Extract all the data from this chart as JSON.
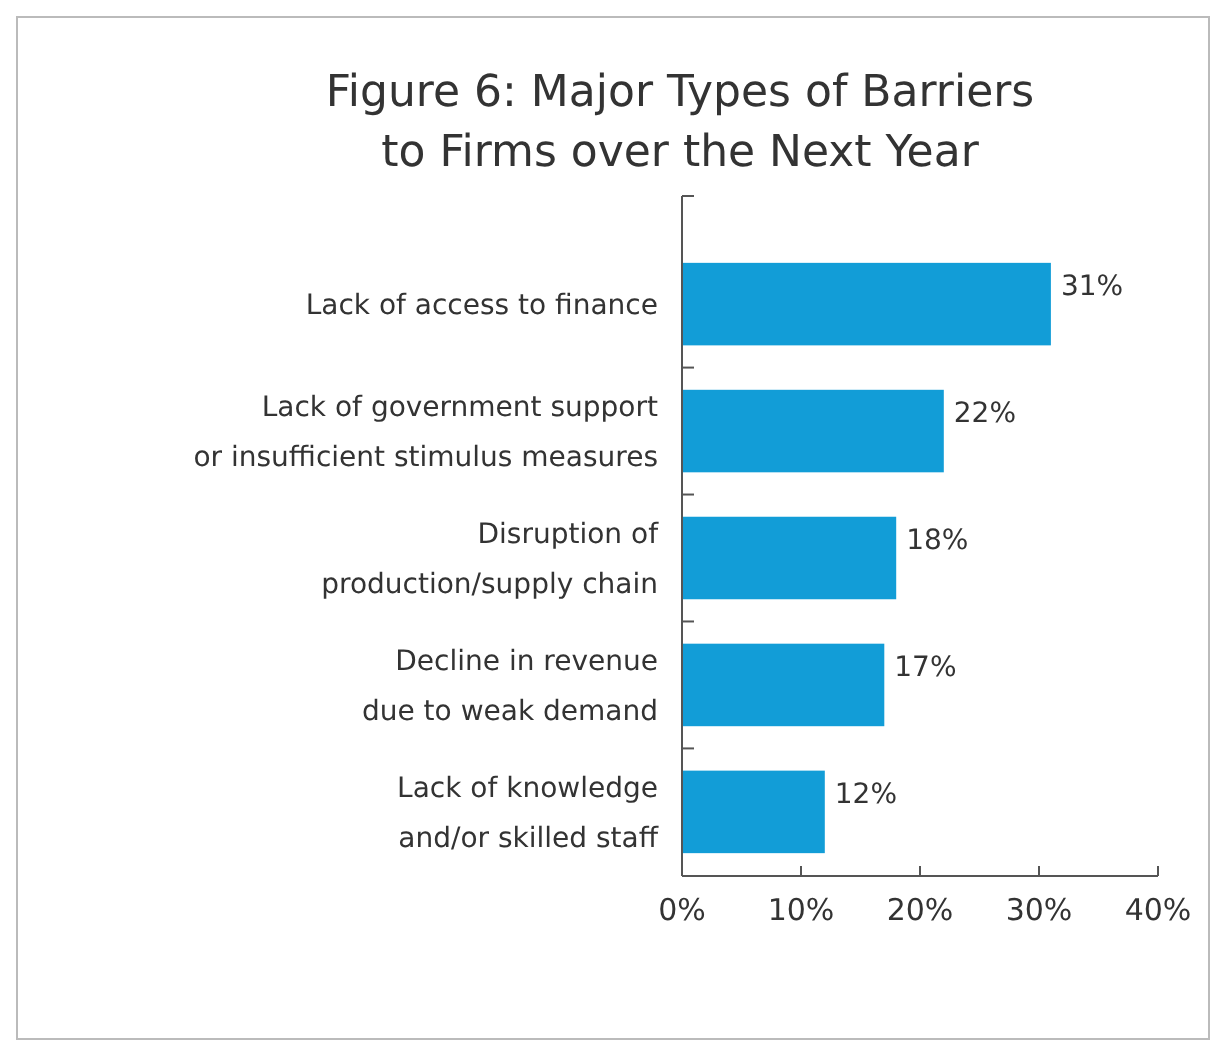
{
  "chart_data": {
    "type": "bar",
    "orientation": "horizontal",
    "title": "Figure 6: Major Types of Barriers\nto Firms over the Next Year",
    "categories": [
      "Lack of access to finance",
      "Lack of government support\nor insufficient stimulus measures",
      "Disruption of\nproduction/supply chain",
      "Decline in revenue\ndue to weak demand",
      "Lack of knowledge\nand/or skilled staff"
    ],
    "values": [
      31,
      22,
      18,
      17,
      12
    ],
    "value_labels": [
      "31%",
      "22%",
      "18%",
      "17%",
      "12%"
    ],
    "color": "#129dd7",
    "xlim": [
      0,
      40
    ],
    "xticks": [
      {
        "value": 0,
        "label": "0%"
      },
      {
        "value": 10,
        "label": "10%"
      },
      {
        "value": 20,
        "label": "20%"
      },
      {
        "value": 30,
        "label": "30%"
      },
      {
        "value": 40,
        "label": "40%"
      }
    ],
    "grid": false
  }
}
